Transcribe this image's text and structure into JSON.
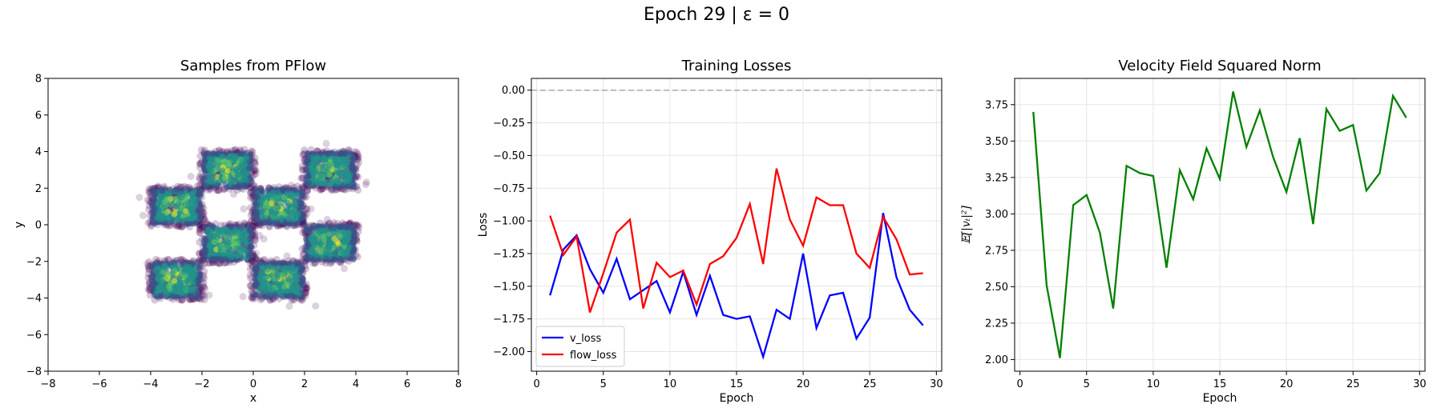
{
  "suptitle": "Epoch 29 | ε = 0",
  "chart_data": [
    {
      "type": "scatter",
      "title": "Samples from PFlow",
      "xlabel": "x",
      "ylabel": "y",
      "xlim": [
        -8,
        8
      ],
      "ylim": [
        -8,
        8
      ],
      "xticks": [
        -8,
        -6,
        -4,
        -2,
        0,
        2,
        4,
        6,
        8
      ],
      "yticks": [
        -8,
        -6,
        -4,
        -2,
        0,
        2,
        4,
        6,
        8
      ],
      "grid": false,
      "colormap": [
        "#440154",
        "#3b528b",
        "#21918c",
        "#5ec962",
        "#fde725"
      ],
      "clusters": [
        {
          "x": [
            -2,
            0
          ],
          "y": [
            2,
            4
          ]
        },
        {
          "x": [
            2,
            4
          ],
          "y": [
            2,
            4
          ]
        },
        {
          "x": [
            -4,
            -2
          ],
          "y": [
            0,
            2
          ]
        },
        {
          "x": [
            0,
            2
          ],
          "y": [
            0,
            2
          ]
        },
        {
          "x": [
            -2,
            0
          ],
          "y": [
            -2,
            0
          ]
        },
        {
          "x": [
            2,
            4
          ],
          "y": [
            -2,
            0
          ]
        },
        {
          "x": [
            -4,
            -2
          ],
          "y": [
            -4,
            -2
          ]
        },
        {
          "x": [
            0,
            2
          ],
          "y": [
            -4,
            -2
          ]
        }
      ]
    },
    {
      "type": "line",
      "title": "Training Losses",
      "xlabel": "Epoch",
      "ylabel": "Loss",
      "xlim": [
        -0.4,
        30.4
      ],
      "ylim": [
        -2.15,
        0.09
      ],
      "xticks": [
        0,
        5,
        10,
        15,
        20,
        25,
        30
      ],
      "yticks": [
        0.0,
        -0.25,
        -0.5,
        -0.75,
        -1.0,
        -1.25,
        -1.5,
        -1.75,
        -2.0
      ],
      "ytick_labels": [
        "0.00",
        "−0.25",
        "−0.50",
        "−0.75",
        "−1.00",
        "−1.25",
        "−1.50",
        "−1.75",
        "−2.00"
      ],
      "grid": true,
      "reference_line": {
        "y": 0,
        "style": "dashed",
        "color": "#aaaaaa"
      },
      "legend_position": "lower-left",
      "x": [
        1,
        2,
        3,
        4,
        5,
        6,
        7,
        8,
        9,
        10,
        11,
        12,
        13,
        14,
        15,
        16,
        17,
        18,
        19,
        20,
        21,
        22,
        23,
        24,
        25,
        26,
        27,
        28,
        29
      ],
      "series": [
        {
          "name": "v_loss",
          "color": "#0000ff",
          "values": [
            -1.57,
            -1.22,
            -1.11,
            -1.37,
            -1.55,
            -1.29,
            -1.6,
            -1.53,
            -1.46,
            -1.7,
            -1.39,
            -1.72,
            -1.42,
            -1.72,
            -1.75,
            -1.73,
            -2.04,
            -1.68,
            -1.75,
            -1.25,
            -1.82,
            -1.57,
            -1.55,
            -1.9,
            -1.74,
            -0.94,
            -1.43,
            -1.68,
            -1.8
          ]
        },
        {
          "name": "flow_loss",
          "color": "#ff0000",
          "values": [
            -0.96,
            -1.26,
            -1.12,
            -1.7,
            -1.4,
            -1.09,
            -0.99,
            -1.67,
            -1.32,
            -1.43,
            -1.38,
            -1.64,
            -1.33,
            -1.27,
            -1.13,
            -0.87,
            -1.33,
            -0.6,
            -0.99,
            -1.19,
            -0.82,
            -0.88,
            -0.88,
            -1.25,
            -1.36,
            -0.97,
            -1.14,
            -1.41,
            -1.4
          ]
        }
      ]
    },
    {
      "type": "line",
      "title": "Velocity Field Squared Norm",
      "xlabel": "Epoch",
      "ylabel": "𝔼[|vₜ|²]",
      "xlim": [
        -0.4,
        30.4
      ],
      "ylim": [
        1.92,
        3.93
      ],
      "xticks": [
        0,
        5,
        10,
        15,
        20,
        25,
        30
      ],
      "yticks": [
        2.0,
        2.25,
        2.5,
        2.75,
        3.0,
        3.25,
        3.5,
        3.75
      ],
      "ytick_labels": [
        "2.00",
        "2.25",
        "2.50",
        "2.75",
        "3.00",
        "3.25",
        "3.50",
        "3.75"
      ],
      "grid": true,
      "x": [
        1,
        2,
        3,
        4,
        5,
        6,
        7,
        8,
        9,
        10,
        11,
        12,
        13,
        14,
        15,
        16,
        17,
        18,
        19,
        20,
        21,
        22,
        23,
        24,
        25,
        26,
        27,
        28,
        29
      ],
      "series": [
        {
          "color": "#008000",
          "values": [
            3.7,
            2.51,
            2.01,
            3.06,
            3.13,
            2.87,
            2.35,
            3.33,
            3.28,
            3.26,
            2.63,
            3.3,
            3.1,
            3.45,
            3.24,
            3.84,
            3.46,
            3.71,
            3.39,
            3.15,
            3.52,
            2.93,
            3.72,
            3.57,
            3.61,
            3.16,
            3.28,
            3.81,
            3.66
          ]
        }
      ]
    }
  ]
}
